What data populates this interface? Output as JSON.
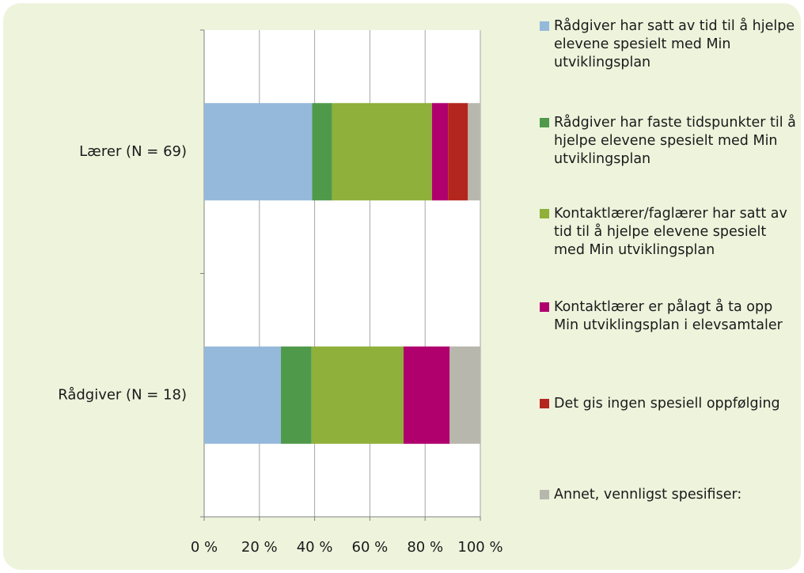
{
  "chart_data": {
    "type": "stacked-barh",
    "categories": [
      "Lærer (N = 69)",
      "Rådgiver (N = 18)"
    ],
    "series": [
      {
        "name": "Rådgiver har satt av tid til å hjelpe elevene spesielt med Min utviklingsplan",
        "color": "#95b9db",
        "values": [
          39.1,
          27.8
        ]
      },
      {
        "name": "Rådgiver har faste tidspunkter til å hjelpe elevene spesielt med Min utviklingsplan",
        "color": "#4f9a4a",
        "values": [
          7.2,
          11.1
        ]
      },
      {
        "name": "Kontaktlærer/faglærer har satt av tid til å hjelpe elevene spesielt med Min utviklingsplan",
        "color": "#8fb03a",
        "values": [
          36.2,
          33.3
        ]
      },
      {
        "name": "Kontaktlærer er pålagt å ta opp Min utviklingsplan i elevsamtaler",
        "color": "#b0006e",
        "values": [
          5.8,
          16.7
        ]
      },
      {
        "name": "Det gis ingen spesiell oppfølging",
        "color": "#b3261e",
        "values": [
          7.2,
          0
        ]
      },
      {
        "name": "Annet, vennligst spesifiser:",
        "color": "#b8b7ae",
        "values": [
          4.3,
          11.1
        ]
      }
    ],
    "xlim": [
      0,
      100
    ],
    "xticks": [
      {
        "value": 0,
        "label": "0 %"
      },
      {
        "value": 20,
        "label": "20 %"
      },
      {
        "value": 40,
        "label": "40 %"
      },
      {
        "value": 60,
        "label": "60 %"
      },
      {
        "value": 80,
        "label": "80 %"
      },
      {
        "value": 100,
        "label": "100 %"
      }
    ],
    "grid": true,
    "legend": "right"
  }
}
